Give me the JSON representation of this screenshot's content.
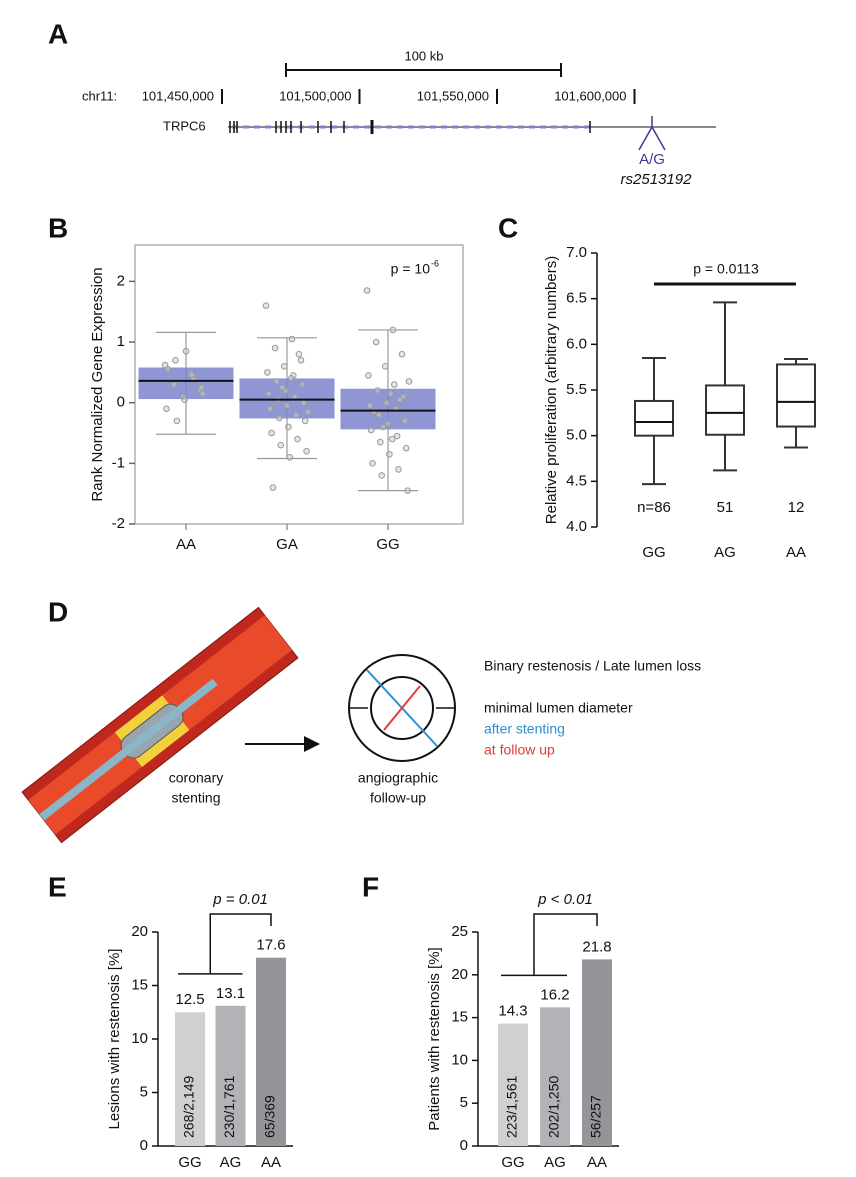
{
  "panel_labels": [
    "A",
    "B",
    "C",
    "D",
    "E",
    "F"
  ],
  "genome_track": {
    "chrom_label": "chr11:",
    "scale_label": "100 kb",
    "gene": "TRPC6",
    "allele": "A/G",
    "snp": "rs2513192",
    "xlim": [
      101450000,
      101630000
    ],
    "ticks": [
      {
        "value": 101450000,
        "label": "101,450,000"
      },
      {
        "value": 101500000,
        "label": "101,500,000"
      },
      {
        "value": 101550000,
        "label": "101,550,000"
      },
      {
        "value": 101600000,
        "label": "101,600,000"
      }
    ]
  },
  "chart_data": [
    {
      "type": "box",
      "ylabel": "Rank Normalized Gene Expression",
      "annotation": "p = 10",
      "annotation_exponent": "-6",
      "categories": [
        "AA",
        "GA",
        "GG"
      ],
      "ylim": [
        -2,
        2.6
      ],
      "yticks": [
        -2,
        -1,
        0,
        1,
        2
      ],
      "color": "#7d84cc",
      "boxes": [
        {
          "whislo": -0.52,
          "q1": 0.06,
          "med": 0.36,
          "q3": 0.58,
          "whishi": 1.16,
          "points": [
            0.62,
            0.48,
            0.3,
            0.2,
            0.1,
            -0.1,
            0.45,
            0.7,
            0.25,
            0.05,
            0.55,
            0.38,
            -0.3,
            0.15,
            0.85
          ]
        },
        {
          "whislo": -0.92,
          "q1": -0.26,
          "med": 0.05,
          "q3": 0.4,
          "whishi": 1.07,
          "points": [
            1.6,
            1.05,
            0.9,
            0.7,
            0.6,
            0.5,
            0.45,
            0.35,
            0.3,
            0.2,
            0.15,
            0.1,
            0.05,
            0,
            -0.05,
            -0.1,
            -0.2,
            -0.25,
            -0.3,
            -0.4,
            -0.5,
            -0.6,
            -0.7,
            -0.8,
            -0.9,
            -1.4,
            0.8,
            0.25,
            -0.15,
            0.4
          ]
        },
        {
          "whislo": -1.45,
          "q1": -0.44,
          "med": -0.13,
          "q3": 0.23,
          "whishi": 1.2,
          "points": [
            1.85,
            1.2,
            1.0,
            0.8,
            0.6,
            0.45,
            0.3,
            0.2,
            0.1,
            0,
            -0.05,
            -0.1,
            -0.2,
            -0.3,
            -0.35,
            -0.45,
            -0.55,
            -0.65,
            -0.75,
            -0.85,
            -1.0,
            -1.1,
            -1.2,
            -1.45,
            0.15,
            -0.15,
            0.05,
            -0.4,
            0.35,
            -0.6
          ]
        }
      ]
    },
    {
      "type": "box",
      "ylabel": "Relative proliferation (arbitrary numbers)",
      "annotation": "p = 0.0113",
      "categories": [
        "GG",
        "AG",
        "AA"
      ],
      "n_labels": [
        "n=86",
        "51",
        "12"
      ],
      "ylim": [
        4,
        7
      ],
      "yticks": [
        {
          "value": 4,
          "label": "4.0"
        },
        {
          "value": 4.5,
          "label": "4.5"
        },
        {
          "value": 5,
          "label": "5.0"
        },
        {
          "value": 5.5,
          "label": "5.5"
        },
        {
          "value": 6,
          "label": "6.0"
        },
        {
          "value": 6.5,
          "label": "6.5"
        },
        {
          "value": 7,
          "label": "7.0"
        }
      ],
      "color": "#ffffff",
      "boxes": [
        {
          "whislo": 4.47,
          "q1": 5.0,
          "med": 5.15,
          "q3": 5.38,
          "whishi": 5.85
        },
        {
          "whislo": 4.62,
          "q1": 5.01,
          "med": 5.25,
          "q3": 5.55,
          "whishi": 6.46
        },
        {
          "whislo": 4.87,
          "q1": 5.1,
          "med": 5.37,
          "q3": 5.78,
          "whishi": 5.84
        }
      ]
    },
    {
      "type": "bar",
      "ylabel": "Lesions with restenosis [%]",
      "annotation": "p = 0.01",
      "categories": [
        "GG",
        "AG",
        "AA"
      ],
      "values": [
        12.5,
        13.1,
        17.6
      ],
      "bar_texts": [
        "268/2,149",
        "230/1,761",
        "65/369"
      ],
      "colors": [
        "#cfd0d2",
        "#b1b3b6",
        "#939598"
      ],
      "ylim": [
        0,
        20
      ],
      "yticks": [
        0,
        5,
        10,
        15,
        20
      ]
    },
    {
      "type": "bar",
      "ylabel": "Patients with restenosis [%]",
      "annotation": "p < 0.01",
      "categories": [
        "GG",
        "AG",
        "AA"
      ],
      "values": [
        14.3,
        16.2,
        21.8
      ],
      "bar_texts": [
        "223/1,561",
        "202/1,250",
        "56/257"
      ],
      "colors": [
        "#cfd0d2",
        "#b1b3b6",
        "#939598"
      ],
      "ylim": [
        0,
        25
      ],
      "yticks": [
        0,
        5,
        10,
        15,
        20,
        25
      ]
    }
  ],
  "diagram": {
    "left_caption": [
      "coronary",
      "stenting"
    ],
    "right_caption": [
      "angiographic",
      "follow-up"
    ],
    "heading": "Binary restenosis / Late lumen loss",
    "legend_title": "minimal lumen diameter",
    "legend_blue": "after stenting",
    "legend_red": "at follow up"
  }
}
